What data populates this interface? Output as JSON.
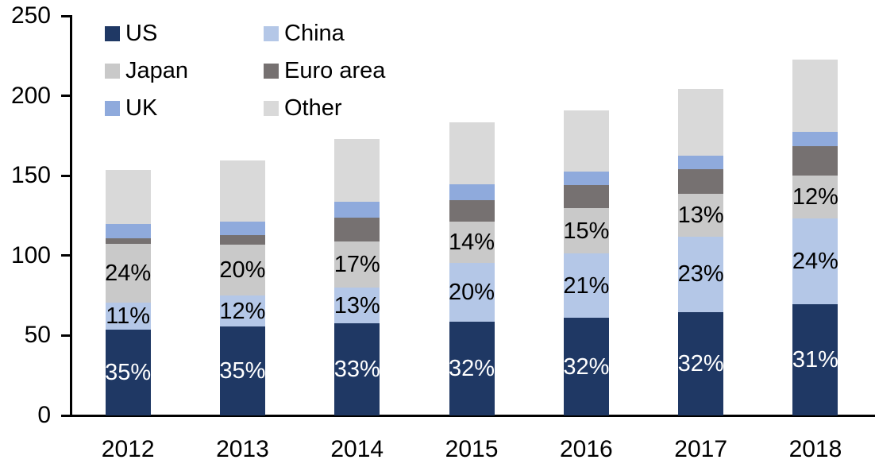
{
  "chart_data": {
    "type": "bar",
    "stacked": true,
    "title": "",
    "xlabel": "",
    "ylabel": "",
    "categories": [
      "2012",
      "2013",
      "2014",
      "2015",
      "2016",
      "2017",
      "2018"
    ],
    "series": [
      {
        "name": "US",
        "color": "#1f3864",
        "values": [
          53.7,
          55.5,
          57.5,
          58.8,
          61.1,
          64.8,
          69.7
        ],
        "labels": [
          "35%",
          "35%",
          "33%",
          "32%",
          "32%",
          "32%",
          "31%"
        ],
        "label_color": "#ffffff"
      },
      {
        "name": "China",
        "color": "#b4c7e7",
        "values": [
          17.0,
          19.5,
          22.5,
          36.8,
          40.2,
          47.2,
          53.6
        ],
        "labels": [
          "11%",
          "12%",
          "13%",
          "20%",
          "21%",
          "23%",
          "24%"
        ],
        "label_color": "#000000"
      },
      {
        "name": "Japan",
        "color": "#c9c9c9",
        "values": [
          36.5,
          32.0,
          29.0,
          25.5,
          28.2,
          26.8,
          27.0
        ],
        "labels": [
          "24%",
          "20%",
          "17%",
          "14%",
          "15%",
          "13%",
          "12%"
        ],
        "label_color": "#000000"
      },
      {
        "name": "Euro area",
        "color": "#767171",
        "values": [
          3.8,
          5.6,
          14.6,
          13.8,
          14.7,
          15.4,
          18.3
        ],
        "labels": null,
        "label_color": null
      },
      {
        "name": "UK",
        "color": "#8faadc",
        "values": [
          8.8,
          8.5,
          10.0,
          9.5,
          8.4,
          8.5,
          8.7
        ],
        "labels": null,
        "label_color": null
      },
      {
        "name": "Other",
        "color": "#d9d9d9",
        "values": [
          33.7,
          38.2,
          39.4,
          39.0,
          38.1,
          41.7,
          45.4
        ],
        "labels": null,
        "label_color": null
      }
    ],
    "totals": [
      153.5,
      159.3,
      173.0,
      183.4,
      190.7,
      204.4,
      222.7
    ],
    "ylim": [
      0,
      250
    ],
    "yticks": [
      0,
      50,
      100,
      150,
      200,
      250
    ],
    "grid": false,
    "legend_position": "top-left",
    "legend_columns": 2,
    "axis_color": "#000000",
    "background_color": "#ffffff"
  }
}
